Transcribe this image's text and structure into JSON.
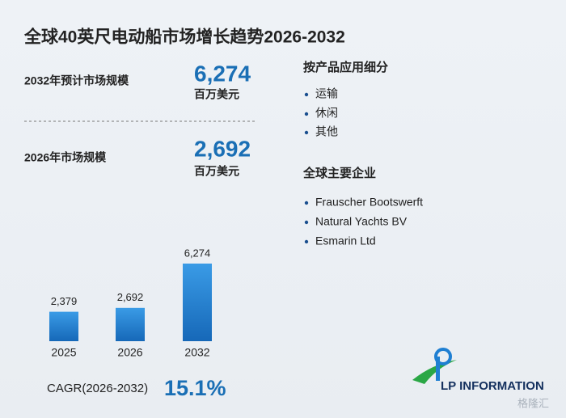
{
  "title": "全球40英尺电动船市场增长趋势2026-2032",
  "stats": [
    {
      "label": "2032年预计市场规模",
      "value": "6,274",
      "unit": "百万美元"
    },
    {
      "label": "2026年市场规模",
      "value": "2,692",
      "unit": "百万美元"
    }
  ],
  "segments": {
    "title": "按产品应用细分",
    "items": [
      "运输",
      "休闲",
      "其他"
    ]
  },
  "companies": {
    "title": "全球主要企业",
    "items": [
      "Frauscher Bootswerft",
      "Natural Yachts BV",
      "Esmarin Ltd"
    ]
  },
  "cagr": {
    "label": "CAGR(2026-2032)",
    "value": "15.1%"
  },
  "logo": "LP INFORMATION",
  "watermark": "格隆汇",
  "chart_data": {
    "type": "bar",
    "categories": [
      "2025",
      "2026",
      "2032"
    ],
    "values": [
      2379,
      2692,
      6274
    ],
    "value_labels": [
      "2,379",
      "2,692",
      "6,274"
    ],
    "color": "#1f7fd2"
  }
}
